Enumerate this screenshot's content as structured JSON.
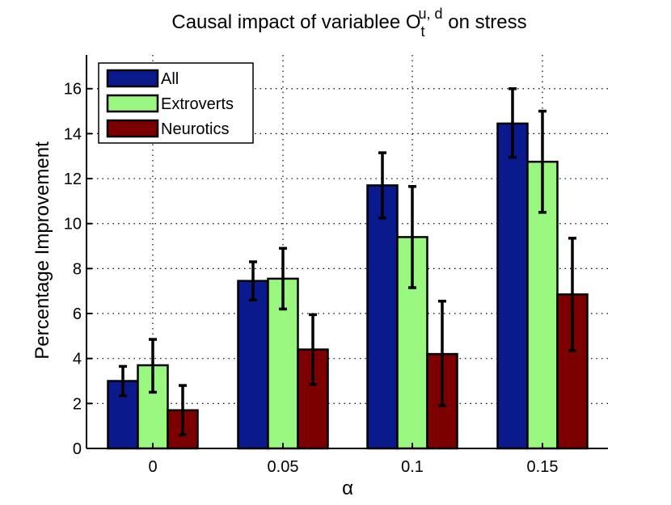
{
  "chart_data": {
    "type": "bar",
    "title": {
      "prefix": "Causal impact of variablee O",
      "sub": "t",
      "sup": "u, d",
      "suffix": " on stress"
    },
    "xlabel": "α",
    "ylabel": "Percentage Improvement",
    "categories": [
      "0",
      "0.05",
      "0.1",
      "0.15"
    ],
    "ylim": [
      0,
      17.5
    ],
    "yticks": [
      0,
      2,
      4,
      6,
      8,
      10,
      12,
      14,
      16
    ],
    "ytick_labels": [
      "0",
      "2",
      "4",
      "6",
      "8",
      "10",
      "12",
      "14",
      "16"
    ],
    "grid": true,
    "legend_position": "top-left",
    "series": [
      {
        "name": "All",
        "color": "#0a1a8c",
        "values": [
          3.0,
          7.45,
          11.7,
          14.45
        ],
        "err_low": [
          2.35,
          6.6,
          10.25,
          12.95
        ],
        "err_high": [
          3.65,
          8.3,
          13.15,
          16.0
        ]
      },
      {
        "name": "Extroverts",
        "color": "#99f77f",
        "values": [
          3.7,
          7.55,
          9.4,
          12.75
        ],
        "err_low": [
          2.5,
          6.2,
          7.15,
          10.5
        ],
        "err_high": [
          4.85,
          8.9,
          11.65,
          15.0
        ]
      },
      {
        "name": "Neurotics",
        "color": "#7d0000",
        "values": [
          1.7,
          4.4,
          4.2,
          6.85
        ],
        "err_low": [
          0.6,
          2.85,
          1.9,
          4.35
        ],
        "err_high": [
          2.8,
          5.95,
          6.55,
          9.35
        ]
      }
    ]
  }
}
